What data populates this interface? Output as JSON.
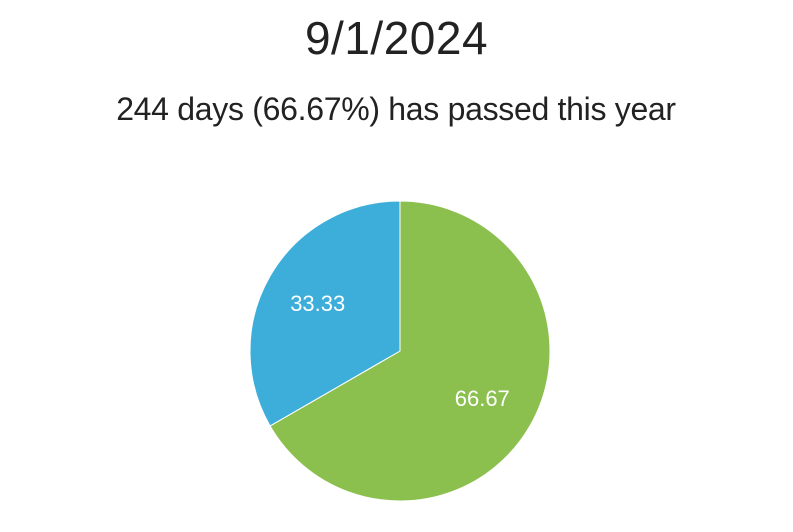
{
  "header": {
    "date": "9/1/2024",
    "summary": "244 days (66.67%) has passed this year"
  },
  "chart_data": {
    "type": "pie",
    "title": "",
    "start_angle_deg": 0,
    "direction": "clockwise",
    "slices": [
      {
        "label": "66.67",
        "value": 66.67,
        "color": "#8bc04f"
      },
      {
        "label": "33.33",
        "value": 33.33,
        "color": "#3dadd9"
      }
    ]
  }
}
